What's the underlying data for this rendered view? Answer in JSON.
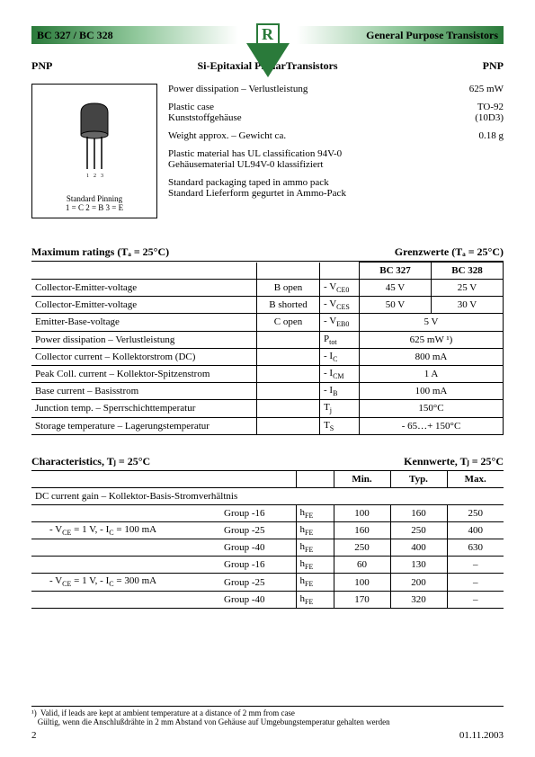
{
  "header": {
    "part_number": "BC 327 / BC 328",
    "logo_letter": "R",
    "category": "General Purpose Transistors",
    "colors": {
      "green_dark": "#2a7a3a",
      "green_light": "#8fc79a"
    }
  },
  "subheader": {
    "left": "PNP",
    "center": "Si-Epitaxial PlanarTransistors",
    "right": "PNP"
  },
  "package": {
    "pinning_title": "Standard Pinning",
    "pinning_text": "1 = C    2 = B    3 = E",
    "pins": "1 2 3"
  },
  "specs": [
    {
      "l1": "Power dissipation – Verlustleistung",
      "l2": "",
      "r1": "625 mW",
      "r2": ""
    },
    {
      "l1": "Plastic case",
      "l2": "Kunststoffgehäuse",
      "r1": "TO-92",
      "r2": "(10D3)"
    },
    {
      "l1": "Weight approx. – Gewicht ca.",
      "l2": "",
      "r1": "0.18 g",
      "r2": ""
    },
    {
      "l1": "Plastic material has UL classification 94V-0",
      "l2": "Gehäusematerial UL94V-0 klassifiziert",
      "r1": "",
      "r2": ""
    },
    {
      "l1": "Standard packaging taped in ammo pack",
      "l2": "Standard Lieferform gegurtet in Ammo-Pack",
      "r1": "",
      "r2": ""
    }
  ],
  "max_ratings": {
    "title_left": "Maximum ratings (Tₐ = 25°C)",
    "title_right": "Grenzwerte (Tₐ = 25°C)",
    "col1": "BC 327",
    "col2": "BC 328",
    "rows": [
      {
        "name": "Collector-Emitter-voltage",
        "cond": "B open",
        "sym": "- V",
        "sub": "CE0",
        "v1": "45 V",
        "v2": "25 V"
      },
      {
        "name": "Collector-Emitter-voltage",
        "cond": "B shorted",
        "sym": "- V",
        "sub": "CES",
        "v1": "50 V",
        "v2": "30 V"
      },
      {
        "name": "Emitter-Base-voltage",
        "cond": "C open",
        "sym": "- V",
        "sub": "EB0",
        "merged": "5 V"
      },
      {
        "name": "Power dissipation – Verlustleistung",
        "cond": "",
        "sym": "P",
        "sub": "tot",
        "merged": "625 mW ¹)"
      },
      {
        "name": "Collector current – Kollektorstrom (DC)",
        "cond": "",
        "sym": "- I",
        "sub": "C",
        "merged": "800 mA"
      },
      {
        "name": "Peak Coll. current – Kollektor-Spitzenstrom",
        "cond": "",
        "sym": "- I",
        "sub": "CM",
        "merged": "1 A"
      },
      {
        "name": "Base current – Basisstrom",
        "cond": "",
        "sym": "- I",
        "sub": "B",
        "merged": "100 mA"
      },
      {
        "name": "Junction temp. – Sperrschichttemperatur",
        "cond": "",
        "sym": "T",
        "sub": "j",
        "merged": "150°C"
      },
      {
        "name": "Storage temperature – Lagerungstemperatur",
        "cond": "",
        "sym": "T",
        "sub": "S",
        "merged": "- 65…+ 150°C"
      }
    ]
  },
  "characteristics": {
    "title_left": "Characteristics, Tⱼ = 25°C",
    "title_right": "Kennwerte, Tⱼ = 25°C",
    "cols": [
      "Min.",
      "Typ.",
      "Max."
    ],
    "section": "DC current gain – Kollektor-Basis-Stromverhältnis",
    "cond1": "- V_CE = 1 V, - I_C = 100 mA",
    "cond2": "- V_CE = 1 V, - I_C = 300 mA",
    "rows": [
      {
        "grp": "Group -16",
        "sym": "h",
        "sub": "FE",
        "min": "100",
        "typ": "160",
        "max": "250"
      },
      {
        "grp": "Group -25",
        "sym": "h",
        "sub": "FE",
        "min": "160",
        "typ": "250",
        "max": "400"
      },
      {
        "grp": "Group -40",
        "sym": "h",
        "sub": "FE",
        "min": "250",
        "typ": "400",
        "max": "630"
      },
      {
        "grp": "Group -16",
        "sym": "h",
        "sub": "FE",
        "min": "60",
        "typ": "130",
        "max": "–"
      },
      {
        "grp": "Group -25",
        "sym": "h",
        "sub": "FE",
        "min": "100",
        "typ": "200",
        "max": "–"
      },
      {
        "grp": "Group -40",
        "sym": "h",
        "sub": "FE",
        "min": "170",
        "typ": "320",
        "max": "–"
      }
    ]
  },
  "footnote": {
    "marker": "¹)",
    "en": "Valid, if leads are kept at ambient temperature at a distance of 2 mm from case",
    "de": "Gültig, wenn die Anschlußdrähte in 2 mm Abstand von Gehäuse auf Umgebungstemperatur gehalten werden"
  },
  "footer": {
    "page": "2",
    "date": "01.11.2003"
  }
}
